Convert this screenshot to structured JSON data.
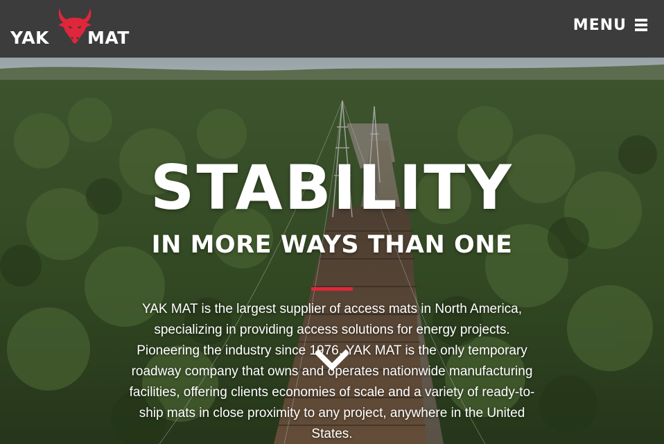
{
  "header": {
    "logo": {
      "left_text": "YAK",
      "right_text": "MAT",
      "icon": "bull-head-icon",
      "accent_color": "#e0263a"
    },
    "menu_label": "MENU",
    "menu_icon": "hamburger-icon",
    "background_color": "#3c3c3c"
  },
  "hero": {
    "title": "STABILITY",
    "subtitle": "IN MORE WAYS THAN ONE",
    "accent_rule_color": "#e0263a",
    "body": "YAK MAT is the largest supplier of access mats in North America, specializing in providing access solutions for energy projects. Pioneering the industry since 1976, YAK MAT is the only temporary roadway company that owns and operates nationwide manufacturing facilities, offering clients economies of scale and a variety of ready-to-ship mats in close proximity to any project, anywhere in the United States.",
    "scroll_icon": "chevron-down-icon"
  }
}
